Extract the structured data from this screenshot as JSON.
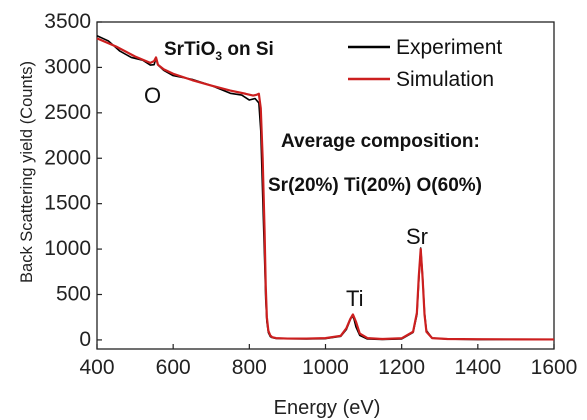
{
  "chart_data": {
    "type": "line",
    "title": "",
    "xlabel": "Energy (eV)",
    "ylabel": "Back Scattering yield (Counts)",
    "xlim": [
      400,
      1600
    ],
    "ylim": [
      -100,
      3500
    ],
    "x_ticks": [
      "400",
      "600",
      "800",
      "1000",
      "1200",
      "1400",
      "1600"
    ],
    "y_ticks": [
      "0",
      "500",
      "1000",
      "1500",
      "2000",
      "2500",
      "3000",
      "3500"
    ],
    "grid": false,
    "legend_position": "top-right",
    "annotations": {
      "sample_prefix": "SrTiO",
      "sample_sub": "3",
      "sample_suffix": " on Si",
      "composition_title": "Average composition:",
      "composition_values": "Sr(20%) Ti(20%) O(60%)",
      "peak_O": "O",
      "peak_Ti": "Ti",
      "peak_Sr": "Sr"
    },
    "series": [
      {
        "name": "Experiment",
        "color": "#000000",
        "x": [
          400,
          430,
          460,
          490,
          520,
          540,
          550,
          555,
          560,
          575,
          600,
          650,
          700,
          750,
          780,
          800,
          815,
          825,
          830,
          835,
          840,
          843,
          846,
          850,
          855,
          860,
          870,
          900,
          950,
          1000,
          1040,
          1055,
          1065,
          1070,
          1075,
          1080,
          1090,
          1110,
          1150,
          1200,
          1230,
          1240,
          1245,
          1250,
          1255,
          1260,
          1265,
          1280,
          1320,
          1400,
          1500,
          1600
        ],
        "y": [
          3360,
          3270,
          3190,
          3120,
          3060,
          3020,
          3040,
          3090,
          3010,
          2960,
          2910,
          2850,
          2790,
          2730,
          2690,
          2660,
          2650,
          2600,
          2300,
          1600,
          900,
          450,
          200,
          80,
          40,
          25,
          15,
          10,
          10,
          15,
          40,
          120,
          220,
          270,
          230,
          140,
          50,
          15,
          8,
          15,
          80,
          280,
          650,
          1010,
          700,
          300,
          100,
          20,
          8,
          6,
          5,
          5
        ]
      },
      {
        "name": "Simulation",
        "color": "#cc1f1f",
        "x": [
          400,
          450,
          500,
          540,
          550,
          555,
          560,
          575,
          600,
          650,
          700,
          750,
          790,
          810,
          820,
          825,
          830,
          835,
          840,
          843,
          846,
          850,
          855,
          860,
          870,
          900,
          950,
          1000,
          1040,
          1055,
          1065,
          1072,
          1080,
          1090,
          1110,
          1150,
          1200,
          1230,
          1240,
          1245,
          1250,
          1255,
          1260,
          1265,
          1280,
          1320,
          1400,
          1500,
          1600
        ],
        "y": [
          3320,
          3230,
          3120,
          3050,
          3070,
          3110,
          3030,
          2980,
          2930,
          2860,
          2800,
          2745,
          2710,
          2690,
          2700,
          2710,
          2550,
          2000,
          1200,
          600,
          250,
          100,
          50,
          30,
          20,
          15,
          15,
          20,
          45,
          130,
          230,
          280,
          200,
          70,
          20,
          10,
          18,
          90,
          300,
          700,
          1000,
          680,
          280,
          90,
          20,
          10,
          8,
          6,
          5
        ]
      }
    ]
  }
}
